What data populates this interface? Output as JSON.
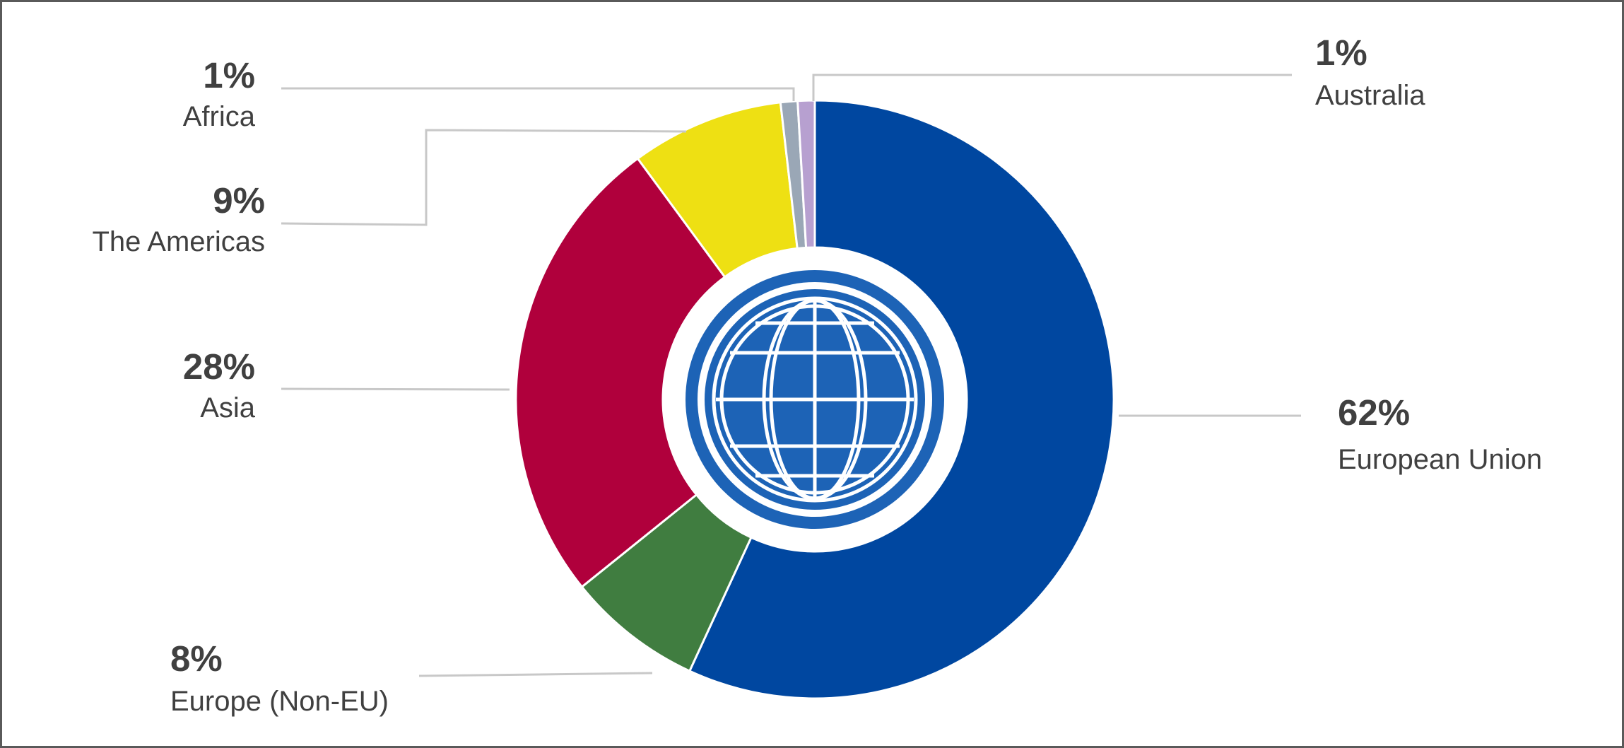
{
  "chart_data": {
    "type": "pie",
    "variant": "donut",
    "center_icon": "globe-icon",
    "slices": [
      {
        "label": "European Union",
        "value": 62,
        "value_label": "62%",
        "color": "#0047A0"
      },
      {
        "label": "Europe (Non-EU)",
        "value": 8,
        "value_label": "8%",
        "color": "#407D40"
      },
      {
        "label": "Asia",
        "value": 28,
        "value_label": "28%",
        "color": "#B0003C"
      },
      {
        "label": "The Americas",
        "value": 9,
        "value_label": "9%",
        "color": "#EEE013"
      },
      {
        "label": "Africa",
        "value": 1,
        "value_label": "1%",
        "color": "#9AA7B6"
      },
      {
        "label": "Australia",
        "value": 1,
        "value_label": "1%",
        "color": "#B7A0D0"
      }
    ],
    "legend": "none",
    "leader_line_color": "#C8C8C8"
  }
}
